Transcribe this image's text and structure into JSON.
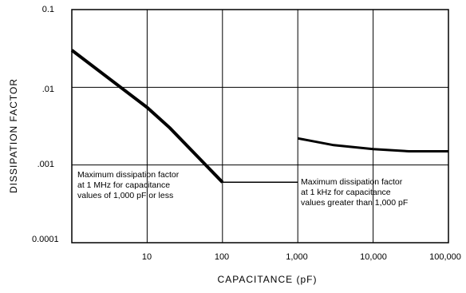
{
  "chart_data": {
    "type": "line",
    "ylabel": "DISSIPATION FACTOR",
    "xlabel": "CAPACITANCE (pF)",
    "x_scale": "log",
    "y_scale": "log",
    "xlim": [
      1,
      100000
    ],
    "ylim": [
      0.0001,
      0.1
    ],
    "x_ticks": [
      "10",
      "100",
      "1,000",
      "10,000",
      "100,000"
    ],
    "y_ticks": [
      "0.1",
      ".01",
      ".001",
      "0.0001"
    ],
    "grid": true,
    "series": [
      {
        "points": [
          [
            1,
            0.03
          ],
          [
            10,
            0.0055
          ],
          [
            20,
            0.003
          ],
          [
            100,
            0.0006
          ],
          [
            1000,
            0.0006
          ]
        ]
      },
      {
        "points": [
          [
            1000,
            0.0022
          ],
          [
            3000,
            0.0018
          ],
          [
            10000,
            0.0016
          ],
          [
            30000,
            0.0015
          ],
          [
            100000,
            0.0015
          ]
        ]
      }
    ],
    "annotations": [
      "Maximum dissipation factor\nat 1 MHz for capacitance\nvalues of 1,000 pF or less",
      "Maximum dissipation factor\nat 1 kHz for capacitance\nvalues greater than 1,000 pF"
    ]
  }
}
